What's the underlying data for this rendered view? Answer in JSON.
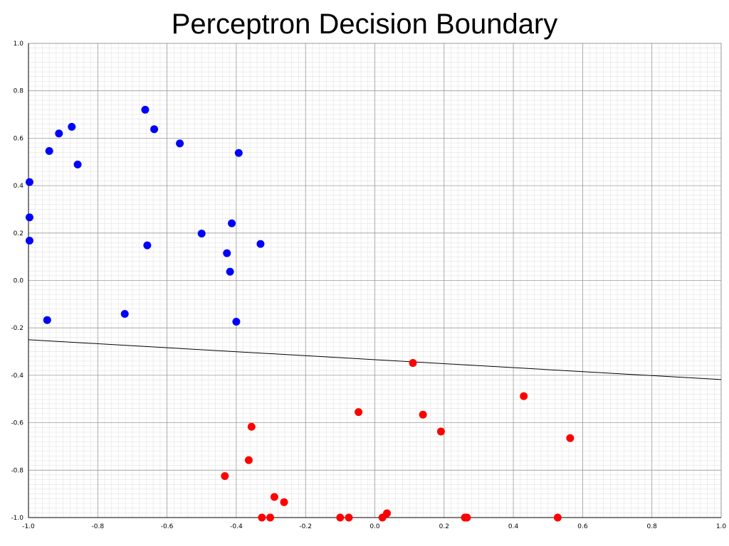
{
  "chart_data": {
    "type": "scatter",
    "title": "Perceptron Decision Boundary",
    "xlabel": "",
    "ylabel": "",
    "xlim": [
      -1.0,
      1.0
    ],
    "ylim": [
      -1.0,
      1.0
    ],
    "grid": true,
    "x_ticks": [
      "-1.0",
      "-0.8",
      "-0.6",
      "-0.4",
      "-0.2",
      "0.0",
      "0.2",
      "0.4",
      "0.6",
      "0.8",
      "1.0"
    ],
    "y_ticks": [
      "1.0",
      "0.8",
      "0.6",
      "0.4",
      "0.2",
      "0.0",
      "-0.2",
      "-0.4",
      "-0.6",
      "-0.8",
      "-1.0"
    ],
    "x_tick_values": [
      -1.0,
      -0.8,
      -0.6,
      -0.4,
      -0.2,
      0.0,
      0.2,
      0.4,
      0.6,
      0.8,
      1.0
    ],
    "y_tick_values": [
      1.0,
      0.8,
      0.6,
      0.4,
      0.2,
      0.0,
      -0.2,
      -0.4,
      -0.6,
      -0.8,
      -1.0
    ],
    "series": [
      {
        "color": "#0000ff",
        "points": [
          [
            -0.663,
            0.72
          ],
          [
            -0.637,
            0.638
          ],
          [
            -0.875,
            0.648
          ],
          [
            -0.912,
            0.62
          ],
          [
            -0.94,
            0.546
          ],
          [
            -0.858,
            0.489
          ],
          [
            -0.563,
            0.578
          ],
          [
            -0.393,
            0.538
          ],
          [
            -0.997,
            0.415
          ],
          [
            -0.997,
            0.266
          ],
          [
            -0.997,
            0.168
          ],
          [
            -0.5,
            0.198
          ],
          [
            -0.413,
            0.241
          ],
          [
            -0.657,
            0.148
          ],
          [
            -0.33,
            0.154
          ],
          [
            -0.427,
            0.115
          ],
          [
            -0.418,
            0.037
          ],
          [
            -0.946,
            -0.167
          ],
          [
            -0.722,
            -0.141
          ],
          [
            -0.4,
            -0.174
          ]
        ]
      },
      {
        "color": "#ff0000",
        "points": [
          [
            0.11,
            -0.348
          ],
          [
            0.43,
            -0.488
          ],
          [
            -0.047,
            -0.555
          ],
          [
            0.139,
            -0.566
          ],
          [
            0.191,
            -0.637
          ],
          [
            0.564,
            -0.665
          ],
          [
            -0.356,
            -0.617
          ],
          [
            -0.364,
            -0.758
          ],
          [
            -0.433,
            -0.825
          ],
          [
            -0.29,
            -0.913
          ],
          [
            -0.262,
            -0.935
          ],
          [
            -0.326,
            -1.0
          ],
          [
            -0.302,
            -1.0
          ],
          [
            -0.1,
            -1.0
          ],
          [
            -0.075,
            -1.0
          ],
          [
            0.035,
            -0.982
          ],
          [
            0.022,
            -1.0
          ],
          [
            0.26,
            -1.0
          ],
          [
            0.266,
            -1.0
          ],
          [
            0.528,
            -1.0
          ]
        ]
      }
    ],
    "decision_boundary": {
      "color": "#000000",
      "points": [
        [
          -1.0,
          -0.25
        ],
        [
          1.0,
          -0.418
        ]
      ]
    }
  }
}
